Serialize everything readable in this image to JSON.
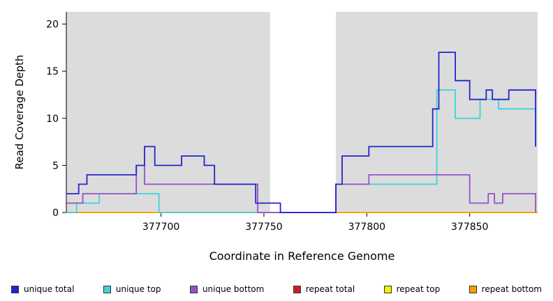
{
  "chart_data": {
    "type": "line",
    "step": true,
    "title": "",
    "xlabel": "Coordinate in Reference Genome",
    "ylabel": "Read Coverage Depth",
    "xlim": [
      377654,
      377883
    ],
    "ylim": [
      0,
      21.3
    ],
    "xticks": [
      377700,
      377750,
      377800,
      377850
    ],
    "yticks": [
      0,
      5,
      10,
      15,
      20
    ],
    "grid": false,
    "legend_position": "bottom",
    "background_color": "#ffffff",
    "shaded_regions": [
      {
        "x0": 377654,
        "x1": 377753,
        "color": "#dcdcdc"
      },
      {
        "x0": 377785,
        "x1": 377883,
        "color": "#dcdcdc"
      }
    ],
    "series": [
      {
        "name": "repeat total",
        "color": "#cc2020",
        "points": [
          [
            377654,
            0
          ],
          [
            377883,
            0
          ]
        ]
      },
      {
        "name": "repeat top",
        "color": "#f0f000",
        "points": [
          [
            377654,
            0
          ],
          [
            377883,
            0
          ]
        ]
      },
      {
        "name": "repeat bottom",
        "color": "#ff9d00",
        "points": [
          [
            377654,
            0
          ],
          [
            377883,
            0
          ]
        ]
      },
      {
        "name": "unique top",
        "color": "#3ed3dd",
        "points": [
          [
            377654,
            0
          ],
          [
            377659,
            1
          ],
          [
            377670,
            2
          ],
          [
            377699,
            0
          ],
          [
            377785,
            3
          ],
          [
            377834,
            13
          ],
          [
            377843,
            10
          ],
          [
            377855,
            12
          ],
          [
            377864,
            11
          ],
          [
            377882,
            7
          ]
        ]
      },
      {
        "name": "unique bottom",
        "color": "#9751c8",
        "points": [
          [
            377654,
            1
          ],
          [
            377662,
            2
          ],
          [
            377688,
            5
          ],
          [
            377692,
            3
          ],
          [
            377747,
            0
          ],
          [
            377785,
            3
          ],
          [
            377801,
            4
          ],
          [
            377850,
            1
          ],
          [
            377859,
            2
          ],
          [
            377862,
            1
          ],
          [
            377866,
            2
          ],
          [
            377882,
            0
          ]
        ]
      },
      {
        "name": "unique total",
        "color": "#2424cd",
        "points": [
          [
            377654,
            2
          ],
          [
            377660,
            3
          ],
          [
            377664,
            4
          ],
          [
            377688,
            5
          ],
          [
            377692,
            7
          ],
          [
            377697,
            5
          ],
          [
            377710,
            6
          ],
          [
            377721,
            5
          ],
          [
            377726,
            3
          ],
          [
            377746,
            1
          ],
          [
            377758,
            0
          ],
          [
            377785,
            3
          ],
          [
            377788,
            6
          ],
          [
            377801,
            7
          ],
          [
            377832,
            11
          ],
          [
            377835,
            17
          ],
          [
            377843,
            14
          ],
          [
            377850,
            12
          ],
          [
            377858,
            13
          ],
          [
            377861,
            12
          ],
          [
            377869,
            13
          ],
          [
            377882,
            7
          ]
        ]
      }
    ],
    "legend_order": [
      "unique total",
      "unique top",
      "unique bottom",
      "repeat total",
      "repeat top",
      "repeat bottom"
    ]
  }
}
